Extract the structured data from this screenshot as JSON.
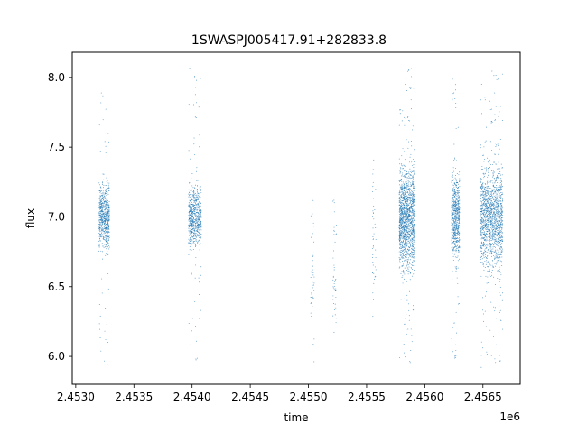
{
  "chart_data": {
    "type": "scatter",
    "title": "1SWASPJ005417.91+282833.8",
    "xlabel": "time",
    "ylabel": "flux",
    "x_offset_label": "1e6",
    "xlim": [
      2.45297,
      2.45682
    ],
    "ylim": [
      5.8,
      8.18
    ],
    "grid": false,
    "legend": "none",
    "point_color": "#1f77b4",
    "x_ticks": [
      {
        "value": 2.453,
        "label": "2.4530"
      },
      {
        "value": 2.4535,
        "label": "2.4535"
      },
      {
        "value": 2.454,
        "label": "2.4540"
      },
      {
        "value": 2.4545,
        "label": "2.4545"
      },
      {
        "value": 2.455,
        "label": "2.4550"
      },
      {
        "value": 2.4555,
        "label": "2.4555"
      },
      {
        "value": 2.456,
        "label": "2.4560"
      },
      {
        "value": 2.4565,
        "label": "2.4565"
      }
    ],
    "y_ticks": [
      {
        "value": 6.0,
        "label": "6.0"
      },
      {
        "value": 6.5,
        "label": "6.5"
      },
      {
        "value": 7.0,
        "label": "7.0"
      },
      {
        "value": 7.5,
        "label": "7.5"
      },
      {
        "value": 8.0,
        "label": "8.0"
      }
    ],
    "observing_seasons": [
      {
        "x_start": 2.4532,
        "x_end": 2.45329,
        "median_flux": 7.0,
        "spread": 0.18,
        "flux_min": 5.92,
        "flux_max": 7.95,
        "density": "high"
      },
      {
        "x_start": 2.45397,
        "x_end": 2.45408,
        "median_flux": 7.0,
        "spread": 0.18,
        "flux_min": 5.95,
        "flux_max": 8.07,
        "density": "high"
      },
      {
        "x_start": 2.45502,
        "x_end": 2.45505,
        "median_flux": 6.6,
        "spread": 0.4,
        "flux_min": 5.93,
        "flux_max": 7.27,
        "density": "sparse"
      },
      {
        "x_start": 2.45521,
        "x_end": 2.45524,
        "median_flux": 6.7,
        "spread": 0.4,
        "flux_min": 5.95,
        "flux_max": 7.34,
        "density": "sparse"
      },
      {
        "x_start": 2.45555,
        "x_end": 2.45558,
        "median_flux": 6.8,
        "spread": 0.45,
        "flux_min": 5.92,
        "flux_max": 7.45,
        "density": "sparse"
      },
      {
        "x_start": 2.45578,
        "x_end": 2.45591,
        "median_flux": 7.0,
        "spread": 0.3,
        "flux_min": 5.93,
        "flux_max": 8.07,
        "density": "very-high"
      },
      {
        "x_start": 2.45623,
        "x_end": 2.4563,
        "median_flux": 7.0,
        "spread": 0.25,
        "flux_min": 5.93,
        "flux_max": 8.02,
        "density": "high"
      },
      {
        "x_start": 2.45648,
        "x_end": 2.45667,
        "median_flux": 7.0,
        "spread": 0.3,
        "flux_min": 5.92,
        "flux_max": 8.07,
        "density": "very-high"
      }
    ]
  }
}
